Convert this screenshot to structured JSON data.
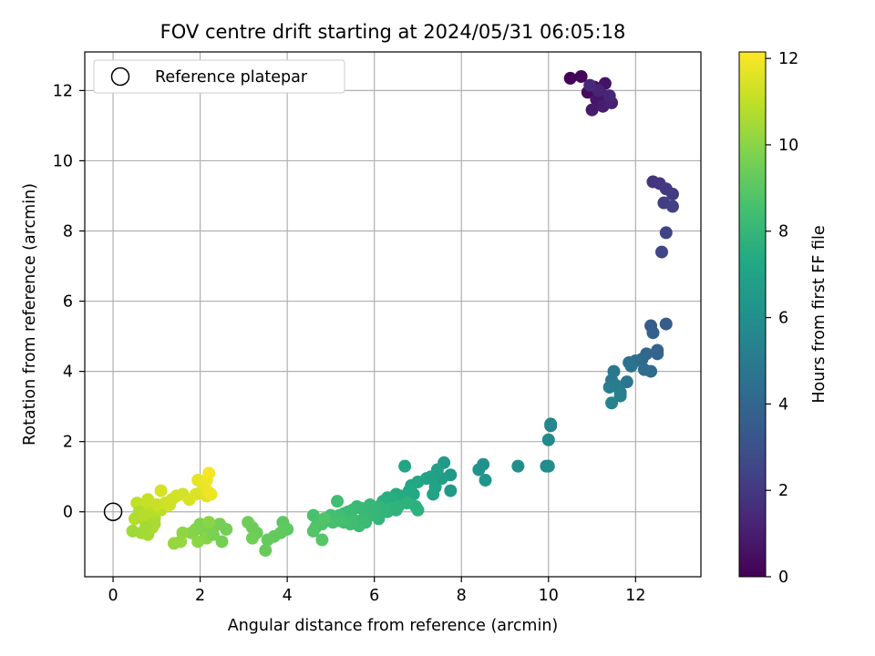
{
  "chart_data": {
    "type": "scatter",
    "title": "FOV centre drift starting at 2024/05/31 06:05:18",
    "xlabel": "Angular distance from reference (arcmin)",
    "ylabel": "Rotation from reference (arcmin)",
    "xlim": [
      -0.65,
      13.5
    ],
    "ylim": [
      -1.85,
      13.1
    ],
    "xticks": [
      0,
      2,
      4,
      6,
      8,
      10,
      12
    ],
    "yticks": [
      0,
      2,
      4,
      6,
      8,
      10,
      12
    ],
    "grid": true,
    "legend": {
      "placement": "top-left",
      "entries": [
        "Reference platepar"
      ]
    },
    "reference_point": {
      "x": 0,
      "y": 0,
      "label": "Reference platepar"
    },
    "colorbar": {
      "label": "Hours from first FF file",
      "range": [
        0,
        12.15
      ],
      "ticks": [
        0,
        2,
        4,
        6,
        8,
        10,
        12
      ],
      "colormap": "viridis"
    },
    "series": [
      {
        "points": [
          [
            10.5,
            12.35,
            0.1
          ],
          [
            10.75,
            12.4,
            0.2
          ],
          [
            10.9,
            11.95,
            0.3
          ],
          [
            11.05,
            12.1,
            0.4
          ],
          [
            11.2,
            11.9,
            0.5
          ],
          [
            11.3,
            12.2,
            0.6
          ],
          [
            11.1,
            11.75,
            0.7
          ],
          [
            11.35,
            11.7,
            0.8
          ],
          [
            11.0,
            11.45,
            0.9
          ],
          [
            11.25,
            11.55,
            1.0
          ],
          [
            11.45,
            11.65,
            1.1
          ],
          [
            11.15,
            12.0,
            1.2
          ],
          [
            11.4,
            11.85,
            1.3
          ],
          [
            10.95,
            12.15,
            1.4
          ]
        ]
      },
      {
        "points": [
          [
            12.4,
            9.4,
            1.8
          ],
          [
            12.55,
            9.35,
            1.9
          ],
          [
            12.7,
            9.2,
            2.0
          ],
          [
            12.85,
            9.05,
            2.1
          ],
          [
            12.65,
            8.8,
            2.2
          ],
          [
            12.85,
            8.7,
            2.3
          ],
          [
            12.7,
            7.95,
            2.4
          ],
          [
            12.6,
            7.4,
            2.5
          ]
        ]
      },
      {
        "points": [
          [
            12.7,
            5.35,
            3.5
          ],
          [
            12.35,
            5.3,
            3.6
          ],
          [
            12.4,
            5.1,
            3.7
          ],
          [
            12.5,
            4.6,
            3.8
          ],
          [
            12.5,
            4.5,
            3.9
          ],
          [
            12.25,
            4.5,
            4.0
          ],
          [
            12.15,
            4.35,
            4.1
          ],
          [
            12.35,
            4.0,
            4.2
          ],
          [
            12.2,
            4.05,
            4.3
          ],
          [
            12.0,
            4.3,
            4.4
          ],
          [
            11.85,
            4.25,
            4.5
          ],
          [
            11.9,
            4.15,
            4.6
          ],
          [
            11.8,
            3.7,
            4.7
          ],
          [
            11.5,
            4.0,
            4.8
          ],
          [
            11.45,
            3.75,
            4.9
          ],
          [
            11.55,
            3.6,
            5.0
          ],
          [
            11.4,
            3.55,
            5.1
          ],
          [
            11.65,
            3.4,
            5.2
          ],
          [
            11.65,
            3.3,
            5.3
          ],
          [
            11.45,
            3.1,
            5.4
          ]
        ]
      },
      {
        "points": [
          [
            10.05,
            2.5,
            5.5
          ],
          [
            10.05,
            2.45,
            5.6
          ],
          [
            10.0,
            2.05,
            5.7
          ],
          [
            9.95,
            1.3,
            5.8
          ],
          [
            10.0,
            1.3,
            5.9
          ],
          [
            9.3,
            1.3,
            6.0
          ],
          [
            8.5,
            1.35,
            6.1
          ],
          [
            8.4,
            1.2,
            6.2
          ],
          [
            8.55,
            0.9,
            6.3
          ],
          [
            7.75,
            1.05,
            6.5
          ],
          [
            7.6,
            1.4,
            6.6
          ],
          [
            7.55,
            0.95,
            6.7
          ],
          [
            7.45,
            1.2,
            6.8
          ],
          [
            7.3,
            1.0,
            6.9
          ],
          [
            7.2,
            0.95,
            7.0
          ],
          [
            7.75,
            0.6,
            6.55
          ],
          [
            7.4,
            0.7,
            6.95
          ],
          [
            7.35,
            0.5,
            7.05
          ],
          [
            6.7,
            1.3,
            7.1
          ],
          [
            7.0,
            0.85,
            7.2
          ],
          [
            6.85,
            0.75,
            7.25
          ],
          [
            6.8,
            0.6,
            7.3
          ],
          [
            6.9,
            0.5,
            7.35
          ],
          [
            6.6,
            0.45,
            7.4
          ],
          [
            6.5,
            0.5,
            7.45
          ],
          [
            6.4,
            0.35,
            7.5
          ],
          [
            6.3,
            0.4,
            7.55
          ],
          [
            6.2,
            0.3,
            7.6
          ],
          [
            6.95,
            0.15,
            7.65
          ],
          [
            7.0,
            0.05,
            7.7
          ],
          [
            6.75,
            0.25,
            7.75
          ],
          [
            6.55,
            0.15,
            7.8
          ],
          [
            6.4,
            0.1,
            7.85
          ],
          [
            6.25,
            0.05,
            7.9
          ],
          [
            6.1,
            0.15,
            7.95
          ],
          [
            6.0,
            0.1,
            8.0
          ],
          [
            5.9,
            0.2,
            8.05
          ],
          [
            5.7,
            0.1,
            8.1
          ],
          [
            5.6,
            0.15,
            8.15
          ],
          [
            5.5,
            0.05,
            8.2
          ],
          [
            5.4,
            0.0,
            8.25
          ],
          [
            5.3,
            -0.05,
            8.3
          ],
          [
            5.2,
            -0.1,
            8.35
          ],
          [
            5.1,
            -0.15,
            8.4
          ],
          [
            5.0,
            -0.1,
            8.45
          ],
          [
            4.9,
            -0.2,
            8.5
          ],
          [
            5.15,
            0.3,
            8.4
          ],
          [
            5.8,
            -0.3,
            8.2
          ],
          [
            5.65,
            -0.4,
            8.3
          ],
          [
            5.55,
            -0.25,
            8.35
          ],
          [
            5.45,
            -0.35,
            8.4
          ],
          [
            5.3,
            -0.3,
            8.45
          ],
          [
            5.2,
            -0.25,
            8.5
          ],
          [
            5.05,
            -0.3,
            8.55
          ],
          [
            6.1,
            -0.2,
            8.0
          ],
          [
            6.3,
            0.0,
            7.9
          ],
          [
            6.5,
            0.05,
            7.8
          ],
          [
            5.9,
            -0.1,
            8.1
          ],
          [
            5.75,
            -0.2,
            8.2
          ]
        ]
      },
      {
        "points": [
          [
            4.6,
            -0.1,
            8.6
          ],
          [
            4.7,
            -0.3,
            8.65
          ],
          [
            4.8,
            -0.35,
            8.7
          ],
          [
            4.65,
            -0.45,
            8.75
          ],
          [
            4.85,
            -0.2,
            8.8
          ],
          [
            4.6,
            -0.55,
            8.85
          ],
          [
            4.8,
            -0.8,
            8.9
          ],
          [
            4.0,
            -0.5,
            9.0
          ],
          [
            3.9,
            -0.3,
            9.05
          ],
          [
            3.95,
            -0.45,
            9.1
          ],
          [
            3.85,
            -0.6,
            9.15
          ],
          [
            3.7,
            -0.7,
            9.2
          ],
          [
            3.55,
            -0.8,
            9.25
          ],
          [
            3.5,
            -1.1,
            9.3
          ],
          [
            3.3,
            -0.6,
            9.35
          ],
          [
            3.2,
            -0.45,
            9.4
          ],
          [
            3.1,
            -0.3,
            9.45
          ],
          [
            3.2,
            -0.75,
            9.5
          ],
          [
            2.6,
            -0.5,
            9.55
          ],
          [
            2.45,
            -0.35,
            9.6
          ],
          [
            2.3,
            -0.45,
            9.65
          ],
          [
            2.2,
            -0.6,
            9.7
          ],
          [
            2.1,
            -0.55,
            9.75
          ],
          [
            2.0,
            -0.35,
            9.8
          ],
          [
            1.9,
            -0.5,
            9.85
          ],
          [
            1.8,
            -0.6,
            9.9
          ],
          [
            2.15,
            -0.75,
            9.95
          ],
          [
            2.2,
            -0.3,
            10.0
          ],
          [
            1.95,
            -0.85,
            10.05
          ],
          [
            2.5,
            -0.85,
            9.6
          ],
          [
            1.6,
            -0.6,
            10.1
          ],
          [
            1.55,
            -0.85,
            10.2
          ],
          [
            1.4,
            -0.9,
            10.25
          ],
          [
            2.3,
            -0.65,
            9.7
          ]
        ]
      },
      {
        "points": [
          [
            0.45,
            -0.55,
            10.4
          ],
          [
            0.65,
            -0.6,
            10.45
          ],
          [
            0.8,
            -0.65,
            10.5
          ],
          [
            0.9,
            -0.45,
            10.55
          ],
          [
            0.75,
            -0.3,
            10.6
          ],
          [
            0.95,
            -0.2,
            10.65
          ],
          [
            0.6,
            -0.15,
            10.7
          ],
          [
            0.5,
            -0.2,
            10.75
          ],
          [
            0.85,
            0.0,
            10.8
          ],
          [
            1.0,
            0.1,
            10.85
          ],
          [
            1.1,
            0.05,
            10.9
          ],
          [
            0.7,
            0.1,
            10.95
          ],
          [
            0.55,
            0.25,
            11.0
          ],
          [
            0.65,
            0.2,
            11.05
          ],
          [
            0.8,
            0.35,
            11.1
          ],
          [
            1.0,
            0.2,
            11.15
          ],
          [
            1.2,
            0.25,
            11.2
          ],
          [
            1.35,
            0.35,
            11.25
          ],
          [
            1.45,
            0.45,
            11.3
          ],
          [
            1.6,
            0.5,
            11.35
          ],
          [
            1.1,
            0.6,
            11.4
          ],
          [
            1.75,
            0.35,
            11.45
          ],
          [
            1.9,
            0.5,
            11.5
          ],
          [
            2.05,
            0.6,
            11.55
          ],
          [
            2.15,
            0.45,
            11.6
          ],
          [
            1.95,
            0.9,
            11.7
          ],
          [
            2.1,
            0.75,
            11.75
          ],
          [
            2.2,
            0.55,
            11.8
          ],
          [
            2.15,
            0.9,
            11.85
          ],
          [
            2.25,
            0.5,
            11.9
          ],
          [
            2.2,
            1.1,
            12.0
          ],
          [
            0.6,
            0.0,
            10.7
          ],
          [
            0.7,
            -0.1,
            10.8
          ],
          [
            1.3,
            0.2,
            11.3
          ],
          [
            0.95,
            -0.35,
            10.6
          ],
          [
            0.75,
            -0.45,
            10.5
          ]
        ]
      }
    ]
  }
}
